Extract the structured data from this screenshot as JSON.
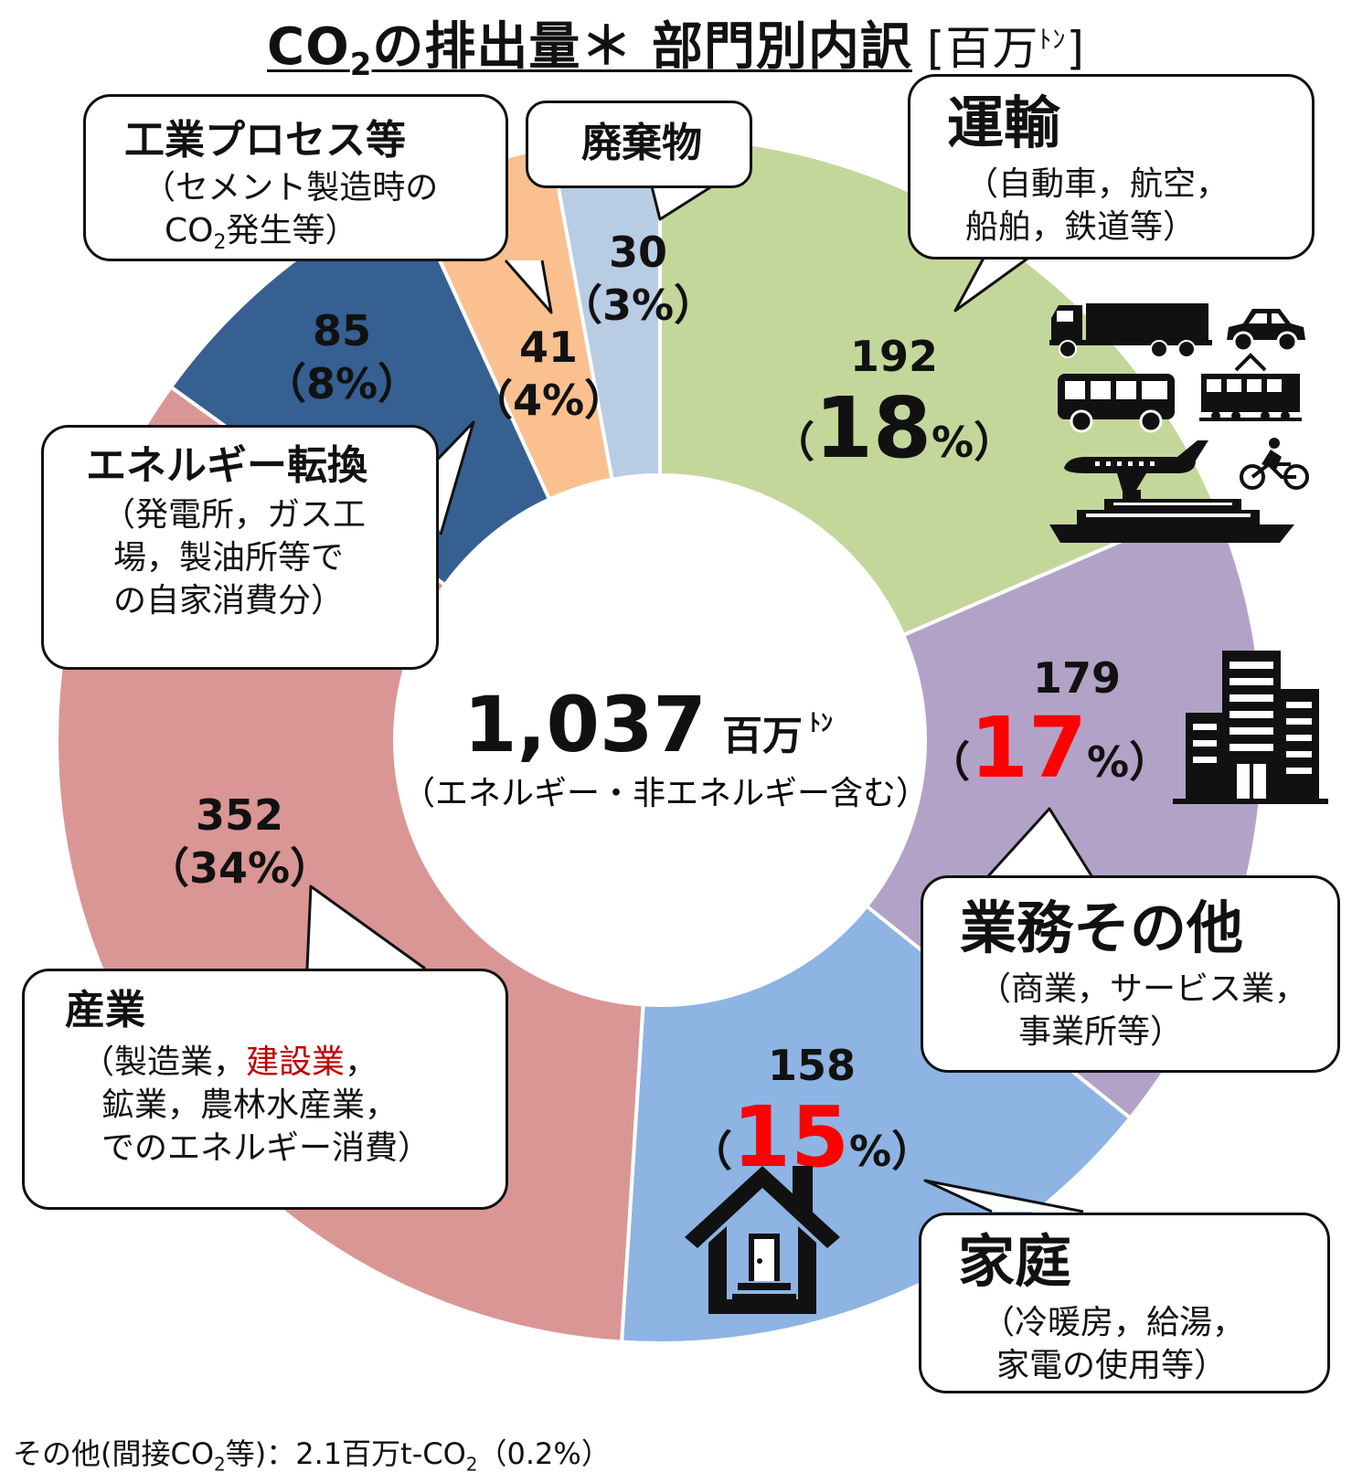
{
  "title": {
    "prefix": "CO",
    "sub": "2",
    "rest": "の排出量＊ 部門別内訳",
    "unit_open": "[百万",
    "unit_small": "ﾄﾝ",
    "unit_close": "]"
  },
  "center": {
    "total": "1,037",
    "unit": "百万",
    "unit_small": "ﾄﾝ",
    "note": "（エネルギー・非エネルギー含む）"
  },
  "chart_data": {
    "type": "pie",
    "title": "CO2の排出量＊ 部門別内訳 [百万ﾄﾝ]",
    "total": 1037,
    "unit": "百万ﾄﾝ",
    "slices": [
      {
        "label": "運輸",
        "value": 192,
        "percent": 18,
        "color": "#c4d79b"
      },
      {
        "label": "業務その他",
        "value": 179,
        "percent": 17,
        "color": "#b3a2c7"
      },
      {
        "label": "家庭",
        "value": 158,
        "percent": 15,
        "color": "#8db4e2"
      },
      {
        "label": "産業",
        "value": 352,
        "percent": 34,
        "color": "#da9694"
      },
      {
        "label": "エネルギー転換",
        "value": 85,
        "percent": 8,
        "color": "#366092"
      },
      {
        "label": "工業プロセス等",
        "value": 41,
        "percent": 4,
        "color": "#fac090"
      },
      {
        "label": "廃棄物",
        "value": 30,
        "percent": 3,
        "color": "#b8cce4"
      }
    ]
  },
  "slice_labels": [
    {
      "value": "192",
      "open": "（",
      "pct": "18",
      "pct_sign": "%",
      "close": "）",
      "highlight": false
    },
    {
      "value": "179",
      "open": "（",
      "pct": "17",
      "pct_sign": "%",
      "close": "）",
      "highlight": true
    },
    {
      "value": "158",
      "open": "（",
      "pct": "15",
      "pct_sign": "%",
      "close": "）",
      "highlight": true
    },
    {
      "value": "352",
      "percent_text": "（34%）"
    },
    {
      "value": "85",
      "percent_text": "（8%）"
    },
    {
      "value": "41",
      "percent_text": "（4%）"
    },
    {
      "value": "30",
      "percent_text": "（3%）"
    }
  ],
  "callouts": {
    "transport": {
      "title": "運輸",
      "line1": "（自動車，航空，",
      "line2": "船舶，鉄道等）"
    },
    "business": {
      "title": "業務その他",
      "line1": "（商業，サービス業，",
      "line2": "事業所等）"
    },
    "household": {
      "title": "家庭",
      "line1": "（冷暖房，給湯，",
      "line2": "家電の使用等）"
    },
    "industry": {
      "title": "産業",
      "line1_a": "（製造業，",
      "line1_b": "建設業",
      "line1_c": "，",
      "line2": "鉱業，農林水産業，",
      "line3": "でのエネルギー消費）"
    },
    "energy": {
      "title": "エネルギー転換",
      "line1": "（発電所，ガス工",
      "line2": "場，製油所等で",
      "line3": "の自家消費分）"
    },
    "process": {
      "title": "工業プロセス等",
      "line1": "（セメント製造時の",
      "line2_a": "CO",
      "line2_sub": "2",
      "line2_b": "発生等）"
    },
    "waste": {
      "title": "廃棄物"
    }
  },
  "footnote": {
    "a": "その他(間接CO",
    "sub1": "2",
    "b": "等)：2.1百万t-CO",
    "sub2": "2",
    "c": "（0.2%）"
  },
  "colors": {
    "highlight": "#ff0000",
    "construction": "#c00000",
    "outline": "#111111"
  },
  "icons": [
    "truck-icon",
    "car-icon",
    "bus-icon",
    "train-icon",
    "airplane-icon",
    "bicycle-icon",
    "ship-icon",
    "building-icon",
    "house-icon"
  ]
}
